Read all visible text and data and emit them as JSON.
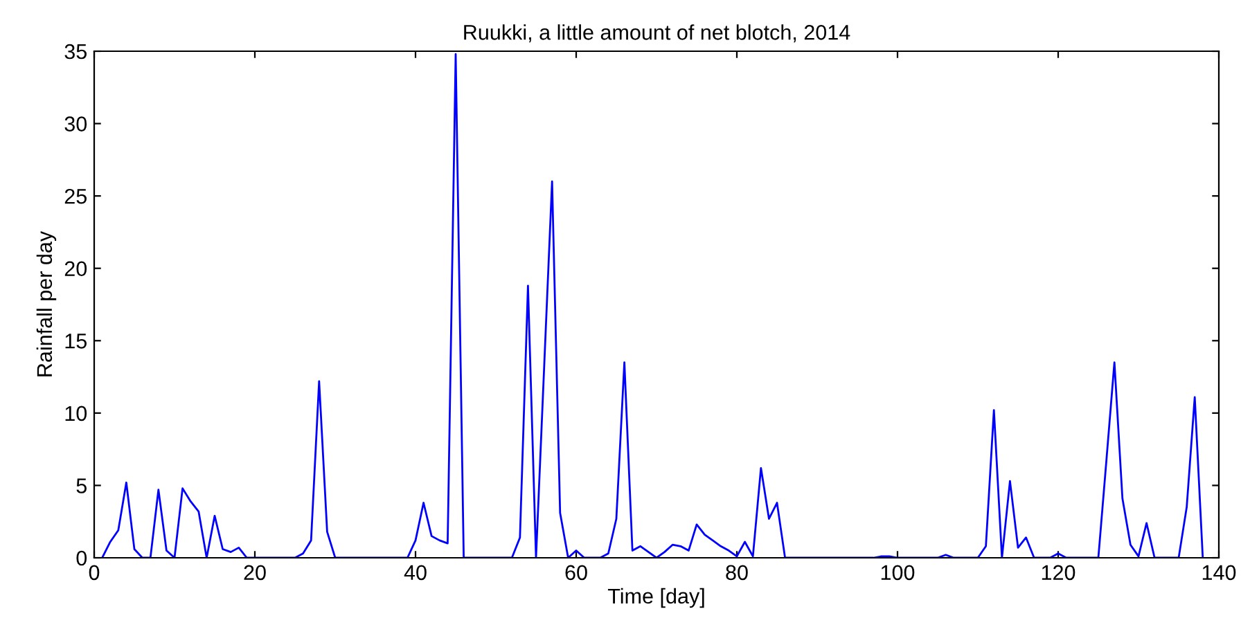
{
  "chart_data": {
    "type": "line",
    "title": "Ruukki, a little amount of net blotch, 2014",
    "xlabel": "Time [day]",
    "ylabel": "Rainfall per day",
    "xlim": [
      0,
      140
    ],
    "xticks": [
      0,
      20,
      40,
      60,
      80,
      100,
      120,
      140
    ],
    "ylim": [
      0,
      35
    ],
    "yticks": [
      0,
      5,
      10,
      15,
      20,
      25,
      30,
      35
    ],
    "grid": false,
    "marker": "none",
    "line_style": "solid",
    "x": [
      1,
      2,
      3,
      4,
      5,
      6,
      7,
      8,
      9,
      10,
      11,
      12,
      13,
      14,
      15,
      16,
      17,
      18,
      19,
      20,
      21,
      22,
      23,
      24,
      25,
      26,
      27,
      28,
      29,
      30,
      31,
      32,
      33,
      34,
      35,
      36,
      37,
      38,
      39,
      40,
      41,
      42,
      43,
      44,
      45,
      46,
      47,
      48,
      49,
      50,
      51,
      52,
      53,
      54,
      55,
      56,
      57,
      58,
      59,
      60,
      61,
      62,
      63,
      64,
      65,
      66,
      67,
      68,
      69,
      70,
      71,
      72,
      73,
      74,
      75,
      76,
      77,
      78,
      79,
      80,
      81,
      82,
      83,
      84,
      85,
      86,
      87,
      88,
      89,
      90,
      91,
      92,
      93,
      94,
      95,
      96,
      97,
      98,
      99,
      100,
      101,
      102,
      103,
      104,
      105,
      106,
      107,
      108,
      109,
      110,
      111,
      112,
      113,
      114,
      115,
      116,
      117,
      118,
      119,
      120,
      121,
      122,
      123,
      124,
      125,
      126,
      127,
      128,
      129,
      130,
      131,
      132,
      133,
      134,
      135,
      136,
      137,
      138
    ],
    "series": [
      {
        "color": "#0000ff",
        "values": [
          0,
          1.1,
          1.9,
          5.2,
          0.6,
          0,
          0,
          4.7,
          0.5,
          0,
          4.8,
          3.9,
          3.2,
          0,
          2.9,
          0.6,
          0.4,
          0.7,
          0,
          0,
          0,
          0,
          0,
          0,
          0,
          0.3,
          1.2,
          12.2,
          1.8,
          0,
          0,
          0,
          0,
          0,
          0,
          0,
          0,
          0,
          0,
          1.2,
          3.8,
          1.5,
          1.2,
          1.0,
          34.8,
          0,
          0,
          0,
          0,
          0,
          0,
          0,
          1.4,
          18.8,
          0,
          13,
          26.0,
          3.1,
          0,
          0.5,
          0,
          0,
          0,
          0.3,
          2.7,
          13.5,
          0.5,
          0.8,
          0.4,
          0,
          0.4,
          0.9,
          0.8,
          0.5,
          2.3,
          1.6,
          1.2,
          0.8,
          0.5,
          0.1,
          1.1,
          0.1,
          6.2,
          2.7,
          3.8,
          0,
          0,
          0,
          0,
          0,
          0,
          0,
          0,
          0,
          0,
          0,
          0,
          0.1,
          0.1,
          0,
          0,
          0,
          0,
          0,
          0,
          0.2,
          0,
          0,
          0,
          0,
          0.8,
          10.2,
          0,
          5.3,
          0.7,
          1.4,
          0,
          0,
          0,
          0.3,
          0,
          0,
          0,
          0,
          0,
          6.7,
          13.5,
          4.1,
          0.9,
          0.1,
          2.4,
          0,
          0,
          0,
          0,
          3.5,
          11.1,
          0
        ]
      }
    ]
  }
}
